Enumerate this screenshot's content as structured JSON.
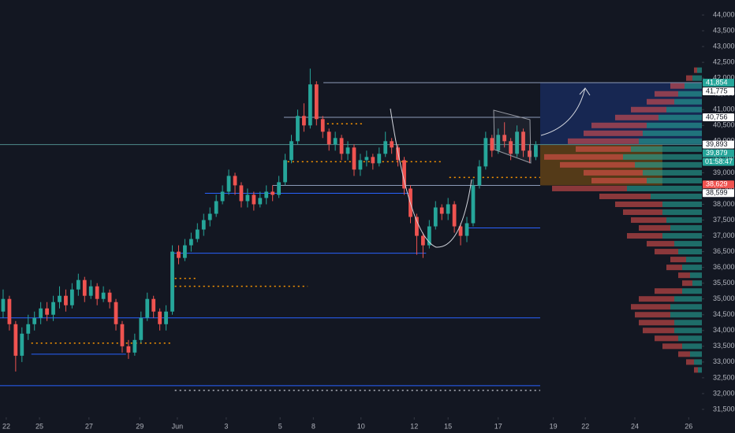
{
  "chart_data": {
    "type": "candlestick",
    "up_color": "#26a69a",
    "down_color": "#ef5350",
    "categories": [
      null,
      null,
      null,
      null,
      null,
      null,
      null,
      null,
      null,
      null,
      null,
      null,
      null,
      null,
      null,
      null,
      null,
      null,
      null,
      null,
      null,
      null,
      null,
      null,
      null,
      null,
      null,
      null,
      null,
      null,
      null,
      null,
      null,
      null,
      null,
      null,
      null,
      null,
      null,
      null,
      null,
      null,
      null,
      null,
      null,
      null,
      null,
      null,
      null,
      null,
      null,
      null,
      null,
      null,
      null,
      null,
      null,
      null,
      null,
      null,
      null,
      null,
      null,
      null,
      null,
      null,
      null,
      null,
      null,
      null,
      null,
      null,
      null,
      null,
      null,
      null,
      null,
      null,
      null,
      null,
      null,
      null,
      null,
      null,
      null,
      null
    ],
    "open": [
      34600,
      35000,
      34200,
      33200,
      33900,
      34200,
      34400,
      34700,
      34500,
      34900,
      35100,
      34800,
      35300,
      35600,
      35100,
      35400,
      35000,
      35200,
      34900,
      34200,
      33500,
      33300,
      33700,
      34400,
      35000,
      34600,
      34200,
      34600,
      36500,
      36300,
      36700,
      36900,
      37200,
      37500,
      37700,
      38100,
      38400,
      38900,
      38600,
      38100,
      38300,
      38000,
      38200,
      38400,
      38300,
      38700,
      39400,
      40000,
      40800,
      40500,
      41800,
      40700,
      40300,
      39900,
      40100,
      39600,
      39800,
      39100,
      39400,
      39500,
      39300,
      39600,
      40000,
      39800,
      39400,
      38500,
      37600,
      37000,
      36700,
      37300,
      37900,
      37700,
      38000,
      37300,
      37000,
      37400,
      38600,
      39200,
      40100,
      39700,
      40200,
      40000,
      39600,
      40300,
      39700,
      39500
    ],
    "high": [
      35300,
      35100,
      34300,
      34100,
      34500,
      34600,
      34900,
      34900,
      35100,
      35400,
      35300,
      35500,
      35800,
      35700,
      35600,
      35500,
      35400,
      35300,
      35000,
      34300,
      33700,
      33900,
      34600,
      35200,
      35100,
      34700,
      34800,
      36700,
      36700,
      36900,
      37100,
      37400,
      37700,
      37900,
      38300,
      38600,
      39100,
      39000,
      38700,
      38500,
      38400,
      38400,
      38600,
      38600,
      38900,
      39600,
      40200,
      41000,
      41200,
      42300,
      41900,
      40800,
      40400,
      40300,
      40200,
      40000,
      39900,
      39600,
      39700,
      39600,
      39800,
      40300,
      40100,
      39900,
      39500,
      38600,
      37700,
      37100,
      37500,
      38100,
      38000,
      38200,
      38100,
      37400,
      37600,
      38800,
      39400,
      40300,
      40200,
      40400,
      40600,
      40100,
      40500,
      40400,
      39900,
      40000
    ],
    "low": [
      34400,
      34000,
      32700,
      33000,
      33700,
      34000,
      34200,
      34300,
      34300,
      34700,
      34600,
      34700,
      35100,
      34900,
      35000,
      34800,
      34900,
      34700,
      34000,
      33300,
      33100,
      33200,
      33600,
      34300,
      34400,
      34000,
      34000,
      34500,
      36100,
      36200,
      36500,
      36800,
      37000,
      37300,
      37600,
      38000,
      38300,
      38300,
      37900,
      37900,
      37800,
      37900,
      38000,
      38100,
      38200,
      38600,
      39300,
      39900,
      40300,
      40400,
      40500,
      40100,
      39700,
      39700,
      39400,
      39400,
      38900,
      38900,
      39200,
      39100,
      39200,
      39500,
      39600,
      39200,
      38300,
      37400,
      36400,
      36300,
      36600,
      37200,
      37500,
      37500,
      37100,
      36700,
      36800,
      37300,
      38500,
      39100,
      39500,
      39600,
      39800,
      39400,
      39500,
      39500,
      39300,
      39400
    ],
    "close": [
      35000,
      34200,
      33200,
      33900,
      34200,
      34400,
      34700,
      34500,
      34900,
      35100,
      34800,
      35300,
      35600,
      35100,
      35400,
      35000,
      35200,
      34900,
      34200,
      33500,
      33300,
      33700,
      34400,
      35000,
      34600,
      34200,
      34600,
      36500,
      36300,
      36700,
      36900,
      37200,
      37500,
      37700,
      38100,
      38400,
      38900,
      38600,
      38100,
      38300,
      38000,
      38200,
      38400,
      38300,
      38700,
      39400,
      40000,
      40800,
      40500,
      41800,
      40700,
      40300,
      39900,
      40100,
      39600,
      39800,
      39100,
      39400,
      39500,
      39300,
      39600,
      40000,
      39800,
      39400,
      38500,
      37600,
      37000,
      36700,
      37300,
      37900,
      37700,
      38000,
      37300,
      37000,
      37400,
      38600,
      39200,
      40100,
      39700,
      40200,
      40000,
      39600,
      40300,
      39700,
      39500,
      39879
    ],
    "xlim": [
      -0.5,
      111.5
    ],
    "ylim": [
      31250,
      44475
    ],
    "xticks": [
      {
        "value": 0.5,
        "label": "22"
      },
      {
        "value": 5.8,
        "label": "25"
      },
      {
        "value": 13.7,
        "label": "27"
      },
      {
        "value": 21.8,
        "label": "29"
      },
      {
        "value": 27.8,
        "label": "Jun"
      },
      {
        "value": 35.6,
        "label": "3"
      },
      {
        "value": 44.2,
        "label": "5"
      },
      {
        "value": 49.5,
        "label": "8"
      },
      {
        "value": 57.1,
        "label": "10"
      },
      {
        "value": 65.6,
        "label": "12"
      },
      {
        "value": 71,
        "label": "15"
      },
      {
        "value": 79,
        "label": "17"
      },
      {
        "value": 87.8,
        "label": "19"
      },
      {
        "value": 92.9,
        "label": "22"
      },
      {
        "value": 100.8,
        "label": "24"
      },
      {
        "value": 109.4,
        "label": "26"
      }
    ],
    "yticks": [
      {
        "value": 31500,
        "label": "31,500"
      },
      {
        "value": 32000,
        "label": "32,000"
      },
      {
        "value": 32500,
        "label": "32,500"
      },
      {
        "value": 33000,
        "label": "33,000"
      },
      {
        "value": 33500,
        "label": "33,500"
      },
      {
        "value": 34000,
        "label": "34,000"
      },
      {
        "value": 34500,
        "label": "34,500"
      },
      {
        "value": 35000,
        "label": "35,000"
      },
      {
        "value": 35500,
        "label": "35,500"
      },
      {
        "value": 36000,
        "label": "36,000"
      },
      {
        "value": 36500,
        "label": "36,500"
      },
      {
        "value": 37000,
        "label": "37,000"
      },
      {
        "value": 37500,
        "label": "37,500"
      },
      {
        "value": 38000,
        "label": "38,000"
      },
      {
        "value": 38500,
        "label": "38,500"
      },
      {
        "value": 39000,
        "label": "39,000"
      },
      {
        "value": 39500,
        "label": "39,500"
      },
      {
        "value": 40000,
        "label": "40,000"
      },
      {
        "value": 40500,
        "label": "40,500"
      },
      {
        "value": 41000,
        "label": "41,000"
      },
      {
        "value": 41500,
        "label": "41,500"
      },
      {
        "value": 42000,
        "label": "42,000"
      },
      {
        "value": 42500,
        "label": "42,500"
      },
      {
        "value": 43000,
        "label": "43,000"
      },
      {
        "value": 43500,
        "label": "43,500"
      },
      {
        "value": 44000,
        "label": "44,000"
      }
    ],
    "zones": [
      {
        "ylim": [
          39893,
          41854
        ],
        "x": [
          85.7,
          111.5
        ],
        "color": "rgba(41,98,255,0.22)"
      },
      {
        "ylim": [
          38599,
          39893
        ],
        "x": [
          85.7,
          105.2
        ],
        "color": "rgba(255,152,0,0.28)"
      }
    ],
    "levels": [
      {
        "value": 41854,
        "x": [
          51.1,
          111.5
        ],
        "color": "#8c9bb8",
        "style": "solid"
      },
      {
        "value": 40756,
        "x": [
          44.8,
          85.7
        ],
        "color": "#8c9bb8",
        "style": "solid"
      },
      {
        "value": 39893,
        "x": [
          -0.5,
          111.5
        ],
        "color": "#4f8a8b",
        "style": "solid"
      },
      {
        "value": 38599,
        "x": [
          43,
          85.7
        ],
        "color": "#8c9bb8",
        "style": "solid"
      },
      {
        "value": 38350,
        "x": [
          32.2,
          65
        ],
        "color": "#2962ff",
        "style": "solid"
      },
      {
        "value": 37250,
        "x": [
          73.8,
          85.7
        ],
        "color": "#2962ff",
        "style": "solid"
      },
      {
        "value": 36450,
        "x": [
          27.2,
          67.5
        ],
        "color": "#2962ff",
        "style": "solid"
      },
      {
        "value": 34400,
        "x": [
          -0.5,
          85.7
        ],
        "color": "#2962ff",
        "style": "solid"
      },
      {
        "value": 33250,
        "x": [
          4.5,
          19.6
        ],
        "color": "#2962ff",
        "style": "solid"
      },
      {
        "value": 32250,
        "x": [
          -0.5,
          85.7
        ],
        "color": "#2962ff",
        "style": "solid"
      },
      {
        "value": 38850,
        "x": [
          71.2,
          85.7
        ],
        "color": "#ff9800",
        "style": "dotted"
      },
      {
        "value": 39350,
        "x": [
          45.4,
          70
        ],
        "color": "#ff9800",
        "style": "dotted"
      },
      {
        "value": 40550,
        "x": [
          51.7,
          57.4
        ],
        "color": "#ff9800",
        "style": "dotted"
      },
      {
        "value": 35650,
        "x": [
          27.4,
          30.9
        ],
        "color": "#ff9800",
        "style": "dotted"
      },
      {
        "value": 35400,
        "x": [
          27.4,
          48.6
        ],
        "color": "#ff9800",
        "style": "dotted"
      },
      {
        "value": 33600,
        "x": [
          4.5,
          27
        ],
        "color": "#ff9800",
        "style": "dotted"
      },
      {
        "value": 32100,
        "x": [
          27.4,
          85.7
        ],
        "color": "#b2b5be",
        "style": "dotted"
      }
    ],
    "volume_profile": {
      "bins": [
        42250,
        42000,
        41750,
        41500,
        41250,
        41000,
        40750,
        40500,
        40250,
        40000,
        39750,
        39500,
        39250,
        39000,
        38750,
        38500,
        38250,
        38000,
        37750,
        37500,
        37250,
        37000,
        36750,
        36500,
        36250,
        36000,
        35750,
        35500,
        35250,
        35000,
        34750,
        34500,
        34250,
        34000,
        33750,
        33500,
        33250,
        33000,
        32750
      ],
      "up": {
        "color": "rgba(38,166,154,0.6)",
        "values": [
          6,
          12,
          22,
          30,
          35,
          45,
          55,
          70,
          75,
          80,
          90,
          100,
          85,
          75,
          70,
          95,
          65,
          50,
          50,
          45,
          40,
          50,
          35,
          30,
          20,
          25,
          15,
          12,
          25,
          35,
          40,
          40,
          35,
          35,
          30,
          25,
          15,
          10,
          5
        ]
      },
      "down": {
        "color": "rgba(239,83,80,0.55)",
        "values": [
          4,
          8,
          18,
          30,
          35,
          45,
          55,
          70,
          75,
          90,
          70,
          100,
          95,
          75,
          70,
          95,
          65,
          60,
          50,
          45,
          40,
          45,
          35,
          30,
          20,
          20,
          15,
          13,
          35,
          45,
          50,
          45,
          45,
          40,
          30,
          25,
          15,
          10,
          5
        ]
      }
    },
    "price_labels": [
      {
        "value": 41854,
        "label": "41,854",
        "color": "#26a69a"
      },
      {
        "value": 41775,
        "label": "41,775",
        "color": "#ffffff"
      },
      {
        "value": 40756,
        "label": "40,756",
        "color": "#ffffff"
      },
      {
        "value": 39893,
        "label": "39,893",
        "color": "#ffffff"
      },
      {
        "value": 39879,
        "label": "39,879",
        "color": "#26a69a"
      },
      {
        "value": 38629,
        "label": "38,629",
        "color": "#ef5350"
      },
      {
        "value": 38599,
        "label": "38,599",
        "color": "#ffffff"
      }
    ],
    "countdown": "01:58:47"
  }
}
